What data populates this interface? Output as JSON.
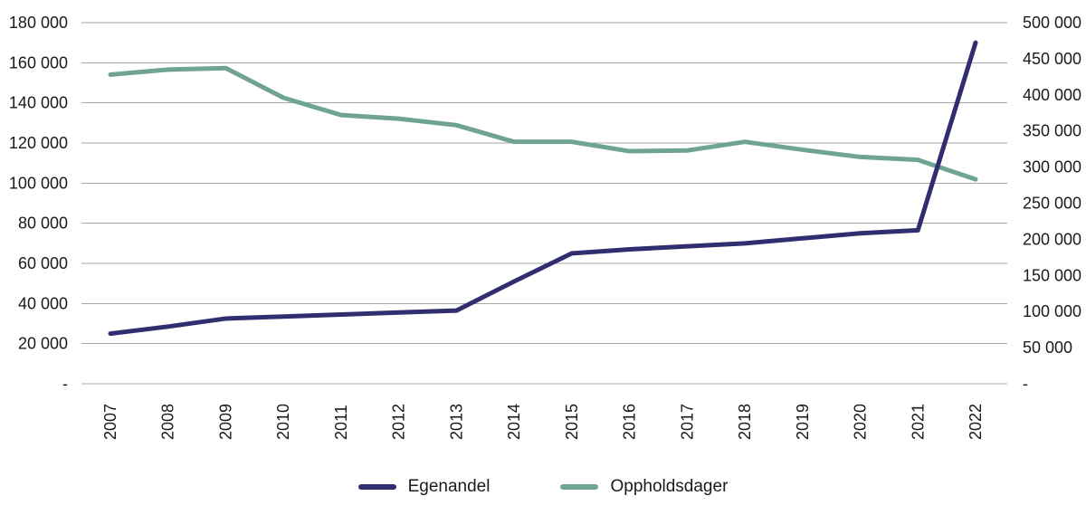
{
  "chart_data": {
    "type": "line",
    "x": [
      "2007",
      "2008",
      "2009",
      "2010",
      "2011",
      "2012",
      "2013",
      "2014",
      "2015",
      "2016",
      "2017",
      "2018",
      "2019",
      "2020",
      "2021",
      "2022"
    ],
    "series": [
      {
        "name": "Egenandel",
        "axis": "left",
        "color": "#312e6f",
        "values": [
          25000,
          28500,
          32500,
          33500,
          34500,
          35500,
          36500,
          51000,
          65000,
          67000,
          68500,
          70000,
          72500,
          75000,
          76500,
          170000
        ]
      },
      {
        "name": "Oppholdsdager",
        "axis": "right",
        "color": "#6fa392",
        "values": [
          428000,
          435000,
          437000,
          396000,
          372000,
          367000,
          358000,
          335000,
          335000,
          322000,
          323000,
          335000,
          324000,
          314000,
          310000,
          283000
        ]
      }
    ],
    "left_axis": {
      "min": 0,
      "max": 180000,
      "tick_labels": [
        "180 000",
        "160 000",
        "140 000",
        "120 000",
        "100 000",
        "80 000",
        "60 000",
        "40 000",
        "20 000",
        "-"
      ]
    },
    "right_axis": {
      "min": 0,
      "max": 500000,
      "tick_labels": [
        "500 000",
        "450 000",
        "400 000",
        "350 000",
        "300 000",
        "250 000",
        "200 000",
        "150 000",
        "100 000",
        "50 000",
        "-"
      ]
    },
    "grid": true,
    "legend_position": "bottom",
    "colors": {
      "gridline": "#a6a6a6",
      "axis_text": "#1a1a1a"
    }
  }
}
